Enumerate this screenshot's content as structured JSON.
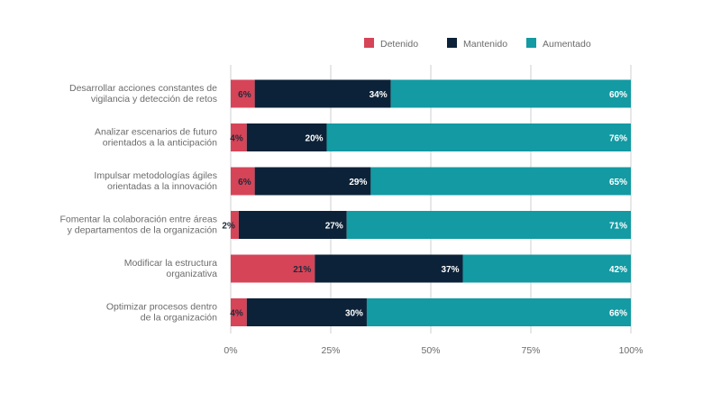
{
  "chart_data": {
    "type": "bar",
    "orientation": "horizontal",
    "stacked": true,
    "legend_position": "top-right",
    "categories": [
      [
        "Desarrollar acciones constantes de",
        "vigilancia y detección de retos"
      ],
      [
        "Analizar escenarios de futuro",
        "orientados a la anticipación"
      ],
      [
        "Impulsar metodologías ágiles",
        "orientadas a la innovación"
      ],
      [
        "Fomentar la colaboración entre áreas",
        "y departamentos de la organización"
      ],
      [
        "Modificar la estructura",
        "organizativa"
      ],
      [
        "Optimizar procesos dentro",
        "de la organización"
      ]
    ],
    "series": [
      {
        "name": "Detenido",
        "color": "#d64458",
        "label_color": "#1f2a3a",
        "values": [
          6,
          4,
          6,
          2,
          21,
          4
        ]
      },
      {
        "name": "Mantenido",
        "color": "#0c2238",
        "label_color": "#ffffff",
        "values": [
          34,
          20,
          29,
          27,
          37,
          30
        ]
      },
      {
        "name": "Aumentado",
        "color": "#139aa3",
        "label_color": "#ffffff",
        "values": [
          60,
          76,
          65,
          71,
          42,
          66
        ]
      }
    ],
    "xlim": [
      0,
      100
    ],
    "xticks": [
      "0%",
      "25%",
      "50%",
      "75%",
      "100%"
    ],
    "grid_color": "#cfcfcf"
  }
}
